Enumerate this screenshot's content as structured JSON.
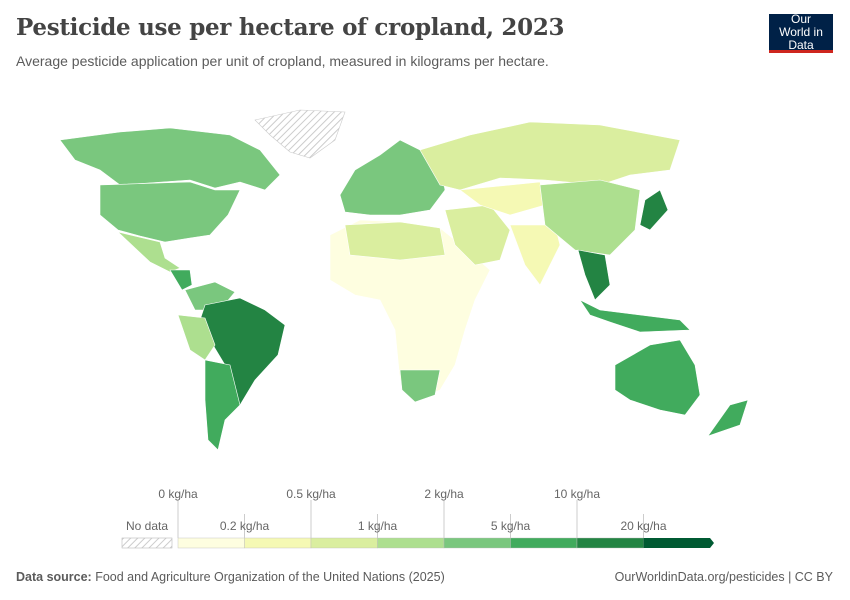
{
  "header": {
    "title": "Pesticide use per hectare of cropland, 2023",
    "subtitle": "Average pesticide application per unit of cropland, measured in kilograms per hectare.",
    "logo": "Our World in Data"
  },
  "legend": {
    "no_data_label": "No data",
    "top_labels": [
      "0 kg/ha",
      "0.5 kg/ha",
      "2 kg/ha",
      "10 kg/ha"
    ],
    "bottom_labels": [
      "0.2 kg/ha",
      "1 kg/ha",
      "5 kg/ha",
      "20 kg/ha"
    ],
    "bins": [
      {
        "from": 0,
        "to": 0.2,
        "color": "#fefee0"
      },
      {
        "from": 0.2,
        "to": 0.5,
        "color": "#f5f9b4"
      },
      {
        "from": 0.5,
        "to": 1,
        "color": "#daee9f"
      },
      {
        "from": 1,
        "to": 2,
        "color": "#addf8f"
      },
      {
        "from": 2,
        "to": 5,
        "color": "#7ac77e"
      },
      {
        "from": 5,
        "to": 10,
        "color": "#41ab5d"
      },
      {
        "from": 10,
        "to": 20,
        "color": "#238443"
      },
      {
        "from": 20,
        "to": null,
        "color": "#005a32"
      }
    ]
  },
  "footer": {
    "source_label": "Data source:",
    "source": "Food and Agriculture Organization of the United Nations (2025)",
    "url": "OurWorldinData.org/pesticides | CC BY"
  }
}
